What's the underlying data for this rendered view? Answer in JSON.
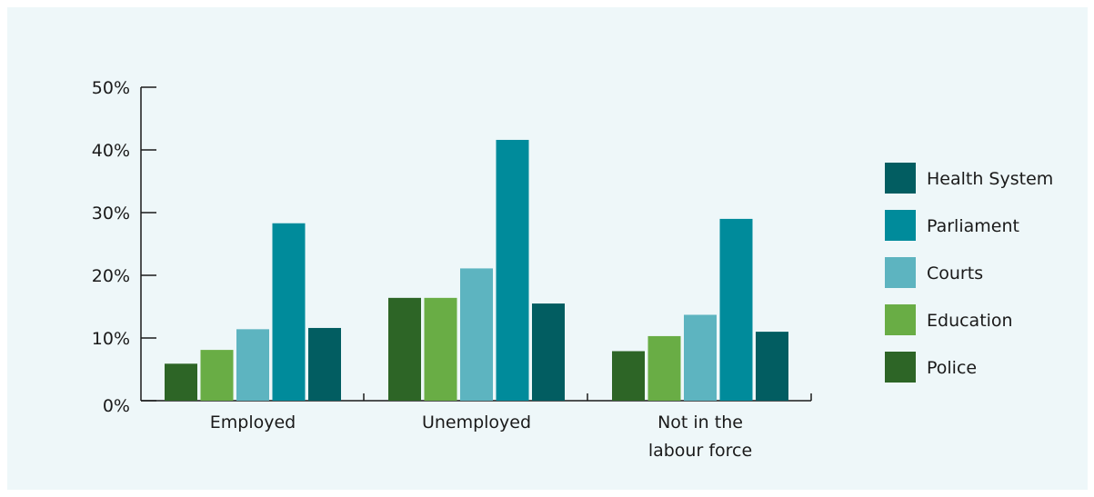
{
  "chart_data": {
    "type": "bar",
    "categories": [
      "Employed",
      "Unemployed",
      "Not in the\nlabour force"
    ],
    "category_lines": [
      [
        "Employed"
      ],
      [
        "Unemployed"
      ],
      [
        "Not in the",
        "labour force"
      ]
    ],
    "series": [
      {
        "name": "Police",
        "color": "#2d6526",
        "values": [
          5.9,
          16.4,
          7.9
        ]
      },
      {
        "name": "Education",
        "color": "#69ad45",
        "values": [
          8.1,
          16.4,
          10.3
        ]
      },
      {
        "name": "Courts",
        "color": "#5db4c0",
        "values": [
          11.4,
          21.1,
          13.7
        ]
      },
      {
        "name": "Parliament",
        "color": "#008b9b",
        "values": [
          28.3,
          41.6,
          29.0
        ]
      },
      {
        "name": "Health System",
        "color": "#025d61",
        "values": [
          11.6,
          15.5,
          11.0
        ]
      }
    ],
    "legend_order": [
      "Health System",
      "Parliament",
      "Courts",
      "Education",
      "Police"
    ],
    "y_ticks": [
      "0%",
      "10%",
      "20%",
      "30%",
      "40%",
      "50%"
    ],
    "ylim": [
      0,
      50
    ],
    "legend_position": "right",
    "grid": false,
    "title": "",
    "xlabel": "",
    "ylabel": ""
  }
}
